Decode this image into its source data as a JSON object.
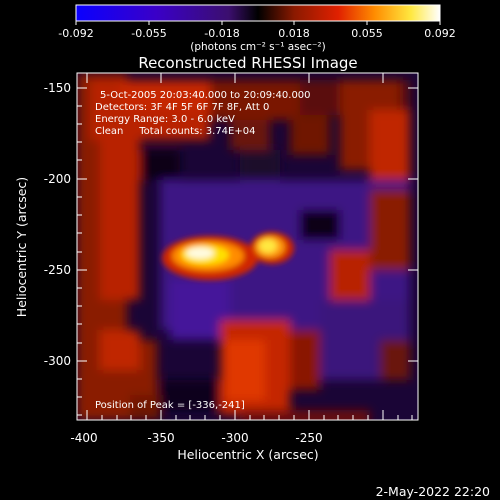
{
  "colorbar": {
    "tick_labels": [
      "-0.092",
      "-0.055",
      "-0.018",
      "0.018",
      "0.055",
      "0.092"
    ],
    "unit_label": "(photons cm⁻² s⁻¹ asec⁻²)",
    "colors": [
      "#0a00ff",
      "#3a00c8",
      "#3b0f6e",
      "#000000",
      "#8b1a00",
      "#e02000",
      "#ff8c00",
      "#ffe840",
      "#ffffff"
    ]
  },
  "title": "Reconstructed RHESSI Image",
  "info": {
    "time": "5-Oct-2005 20:03:40.000 to 20:09:40.000",
    "detectors": "Detectors: 3F 4F 5F 6F 7F 8F, Att 0",
    "energy": "Energy Range: 3.0 - 6.0 keV",
    "clean": "Clean     Total counts: 3.74E+04"
  },
  "peak": "Position of Peak = [-336,-241]",
  "axes": {
    "xlabel": "Heliocentric X (arcsec)",
    "ylabel": "Heliocentric Y (arcsec)",
    "x_ticks": [
      "-400",
      "-350",
      "-300",
      "-250"
    ],
    "y_ticks": [
      "-150",
      "-200",
      "-250",
      "-300"
    ]
  },
  "timestamp": "2-May-2022 22:20"
}
